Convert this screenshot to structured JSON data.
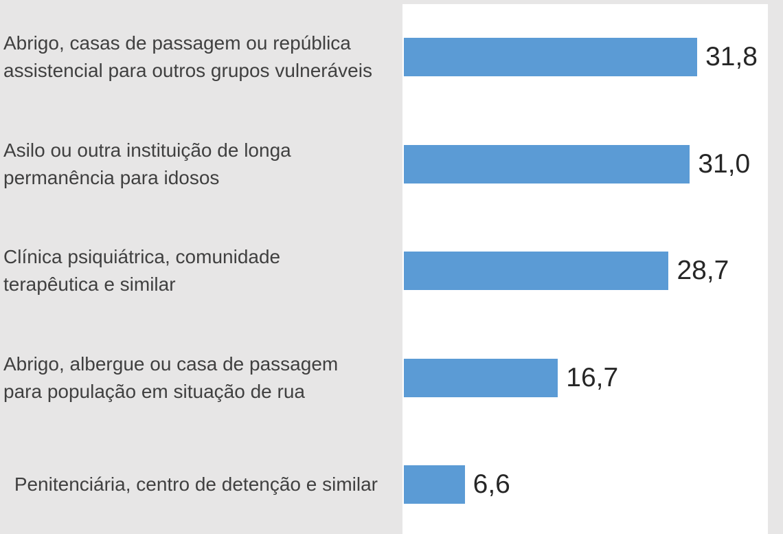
{
  "chart_data": {
    "type": "barh",
    "categories": [
      "Abrigo, casas de passagem ou república assistencial para outros grupos vulneráveis",
      "Asilo ou outra instituição de longa permanência para idosos",
      "Clínica psiquiátrica, comunidade terapêutica e similar",
      "Abrigo, albergue ou casa de passagem para população em situação de rua",
      "Penitenciária, centro de detenção e similar"
    ],
    "values": [
      31.8,
      31.0,
      28.7,
      16.7,
      6.6
    ],
    "value_labels": [
      "31,8",
      "31,0",
      "28,7",
      "16,7",
      "6,6"
    ],
    "color": "#5b9bd5"
  }
}
